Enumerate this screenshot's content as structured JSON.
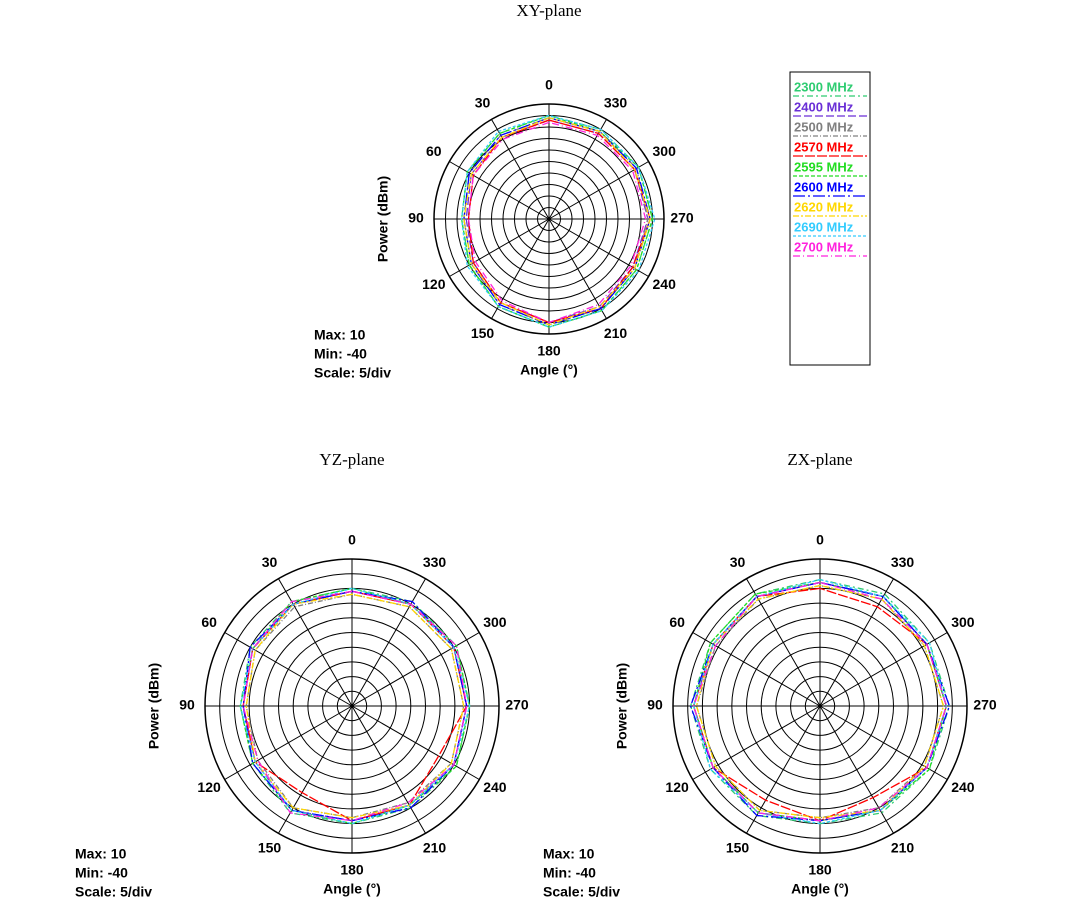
{
  "chart_data": [
    {
      "type": "polar",
      "title": "XY-plane",
      "radial_label": "Power (dBm)",
      "angle_label": "Angle (°)",
      "annotations": [
        "Max: 10",
        "Min: -40",
        "Scale: 5/div"
      ],
      "x": [
        0,
        30,
        60,
        90,
        120,
        150,
        180,
        210,
        240,
        270,
        300,
        330
      ],
      "xlim": [
        0,
        360
      ],
      "xticks": [
        0,
        30,
        60,
        90,
        120,
        150,
        180,
        210,
        240,
        270,
        300,
        330
      ],
      "rlim": [
        -40,
        10
      ],
      "rticks": [
        -40,
        -35,
        -30,
        -25,
        -20,
        -15,
        -10,
        -5,
        0,
        5,
        10
      ],
      "series": [
        {
          "name": "2300 MHz",
          "color": "#2ecc71",
          "values": [
            5,
            3,
            1,
            -2,
            0,
            4,
            7,
            6,
            4,
            5,
            5,
            5
          ]
        },
        {
          "name": "2400 MHz",
          "color": "#6a2fd6",
          "values": [
            3,
            1,
            -1,
            -4,
            -2,
            2,
            5,
            4,
            2,
            3,
            3,
            3
          ]
        },
        {
          "name": "2500 MHz",
          "color": "#808080",
          "values": [
            4,
            2,
            0,
            -3,
            -1,
            3,
            6,
            5,
            3,
            3,
            4,
            4
          ]
        },
        {
          "name": "2570 MHz",
          "color": "#ff0000",
          "values": [
            3,
            1,
            -2,
            -5,
            -2,
            2,
            5,
            5,
            2,
            4,
            3,
            3
          ]
        },
        {
          "name": "2595 MHz",
          "color": "#22dd22",
          "values": [
            5,
            3,
            1,
            -2,
            0,
            4,
            7,
            6,
            4,
            5,
            5,
            4
          ]
        },
        {
          "name": "2600 MHz",
          "color": "#0000ff",
          "values": [
            4,
            2,
            0,
            -3,
            -1,
            3,
            6,
            5,
            3,
            4,
            4,
            4
          ]
        },
        {
          "name": "2620 MHz",
          "color": "#ffd700",
          "values": [
            4,
            1,
            -1,
            -3,
            -1,
            2,
            6,
            4,
            3,
            4,
            3,
            4
          ]
        },
        {
          "name": "2690 MHz",
          "color": "#33ccff",
          "values": [
            5,
            4,
            1,
            -2,
            1,
            4,
            7,
            6,
            5,
            6,
            5,
            5
          ]
        },
        {
          "name": "2700 MHz",
          "color": "#ff22dd",
          "values": [
            2,
            0,
            -2,
            -5,
            -3,
            1,
            5,
            3,
            1,
            2,
            2,
            2
          ]
        }
      ]
    },
    {
      "type": "polar",
      "title": "YZ-plane",
      "radial_label": "Power (dBm)",
      "angle_label": "Angle (°)",
      "annotations": [
        "Max: 10",
        "Min: -40",
        "Scale: 5/div"
      ],
      "x": [
        0,
        30,
        60,
        90,
        120,
        150,
        180,
        210,
        240,
        270,
        300,
        330
      ],
      "xlim": [
        0,
        360
      ],
      "xticks": [
        0,
        30,
        60,
        90,
        120,
        150,
        180,
        210,
        240,
        270,
        300,
        330
      ],
      "rlim": [
        -40,
        10
      ],
      "rticks": [
        -40,
        -35,
        -30,
        -25,
        -20,
        -15,
        -10,
        -5,
        0,
        5,
        10
      ],
      "series": [
        {
          "color": "#2ecc71",
          "values": [
            0,
            1,
            0,
            -2,
            -1,
            2,
            0,
            0,
            1,
            0,
            1,
            1
          ]
        },
        {
          "color": "#6a2fd6",
          "values": [
            -1,
            0,
            -1,
            -3,
            -2,
            1,
            -1,
            -1,
            0,
            -1,
            0,
            0
          ]
        },
        {
          "color": "#808080",
          "values": [
            -2,
            -1,
            -2,
            -4,
            -3,
            0,
            -2,
            -2,
            -1,
            -2,
            -1,
            -1
          ]
        },
        {
          "color": "#ff0000",
          "values": [
            -1,
            0,
            -1,
            -3,
            -2,
            -6,
            -1,
            -1,
            -6,
            -1,
            0,
            0
          ]
        },
        {
          "color": "#22dd22",
          "values": [
            0,
            1,
            -1,
            -2,
            -1,
            1,
            0,
            -1,
            1,
            0,
            1,
            0
          ]
        },
        {
          "color": "#0000ff",
          "values": [
            -1,
            0,
            0,
            -3,
            -1,
            1,
            -1,
            0,
            0,
            -1,
            0,
            1
          ]
        },
        {
          "color": "#ffd700",
          "values": [
            -2,
            0,
            -2,
            -4,
            -2,
            0,
            -2,
            -1,
            -1,
            -2,
            -1,
            -1
          ]
        },
        {
          "color": "#33ccff",
          "values": [
            0,
            0,
            -1,
            -2,
            -2,
            1,
            0,
            -1,
            0,
            0,
            0,
            0
          ]
        },
        {
          "color": "#ff22dd",
          "values": [
            -1,
            1,
            -1,
            -3,
            -3,
            2,
            -1,
            -2,
            0,
            -1,
            1,
            0
          ]
        }
      ]
    },
    {
      "type": "polar",
      "title": "ZX-plane",
      "radial_label": "Power (dBm)",
      "angle_label": "Angle (°)",
      "annotations": [
        "Max: 10",
        "Min: -40",
        "Scale: 5/div"
      ],
      "x": [
        0,
        30,
        60,
        90,
        120,
        150,
        180,
        210,
        240,
        270,
        300,
        330
      ],
      "xlim": [
        0,
        360
      ],
      "xticks": [
        0,
        30,
        60,
        90,
        120,
        150,
        180,
        210,
        240,
        270,
        300,
        330
      ],
      "rlim": [
        -40,
        10
      ],
      "rticks": [
        -40,
        -35,
        -30,
        -25,
        -20,
        -15,
        -10,
        -5,
        0,
        5,
        10
      ],
      "series": [
        {
          "color": "#2ecc71",
          "values": [
            3,
            4,
            3,
            4,
            3,
            3,
            0,
            2,
            3,
            4,
            3,
            4
          ]
        },
        {
          "color": "#6a2fd6",
          "values": [
            2,
            3,
            2,
            3,
            2,
            2,
            -1,
            1,
            2,
            3,
            2,
            3
          ]
        },
        {
          "color": "#808080",
          "values": [
            1,
            2,
            1,
            2,
            1,
            1,
            -2,
            0,
            1,
            2,
            1,
            2
          ]
        },
        {
          "color": "#ff0000",
          "values": [
            0,
            3,
            2,
            3,
            2,
            -3,
            -1,
            -4,
            2,
            3,
            2,
            -1
          ]
        },
        {
          "color": "#22dd22",
          "values": [
            2,
            4,
            3,
            3,
            2,
            2,
            -1,
            1,
            3,
            3,
            2,
            3
          ]
        },
        {
          "color": "#0000ff",
          "values": [
            2,
            3,
            2,
            4,
            2,
            3,
            -1,
            1,
            2,
            4,
            2,
            3
          ]
        },
        {
          "color": "#ffd700",
          "values": [
            1,
            2,
            2,
            2,
            1,
            1,
            -2,
            1,
            1,
            2,
            1,
            2
          ]
        },
        {
          "color": "#33ccff",
          "values": [
            3,
            3,
            2,
            3,
            3,
            2,
            0,
            1,
            2,
            3,
            3,
            3
          ]
        },
        {
          "color": "#ff22dd",
          "values": [
            2,
            3,
            1,
            3,
            2,
            2,
            -1,
            0,
            2,
            3,
            2,
            2
          ]
        }
      ]
    }
  ]
}
